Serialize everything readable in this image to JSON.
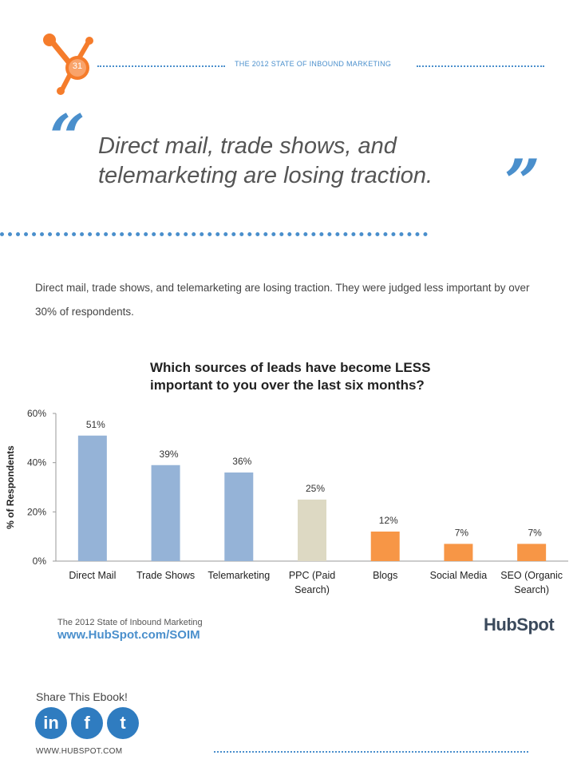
{
  "header": {
    "page_number": "31",
    "title": "THE 2012 STATE OF INBOUND MARKETING"
  },
  "quote": {
    "open_mark": "“",
    "line1": "Direct mail, trade shows, and",
    "line2": "telemarketing are losing traction.",
    "close_mark": "”"
  },
  "intro": "Direct mail, trade shows, and telemarketing are losing traction. They were judged less important by over 30% of respondents.",
  "chart_data": {
    "type": "bar",
    "title_line1": "Which sources of leads have become LESS",
    "title_line2": "important to you over the last six months?",
    "ylabel": "% of Respondents",
    "ylim": [
      0,
      60
    ],
    "yticks": [
      "0%",
      "20%",
      "40%",
      "60%"
    ],
    "categories": [
      [
        "Direct Mail"
      ],
      [
        "Trade Shows"
      ],
      [
        "Telemarketing"
      ],
      [
        "PPC (Paid",
        "Search)"
      ],
      [
        "Blogs"
      ],
      [
        "Social Media"
      ],
      [
        "SEO (Organic",
        "Search)"
      ]
    ],
    "values": [
      51,
      39,
      36,
      25,
      12,
      7,
      7
    ],
    "value_labels": [
      "51%",
      "39%",
      "36%",
      "25%",
      "12%",
      "7%",
      "7%"
    ],
    "colors": [
      "#95b3d7",
      "#95b3d7",
      "#95b3d7",
      "#ddd9c3",
      "#f79646",
      "#f79646",
      "#f79646"
    ],
    "grid": false
  },
  "footer": {
    "report_name": "The 2012 State of Inbound Marketing",
    "report_url": "www.HubSpot.com/SOIM",
    "share_label": "Share This Ebook!",
    "social": [
      "in",
      "f",
      "t"
    ],
    "site_url": "WWW.HUBSPOT.COM",
    "logo_text": "HubSpot"
  },
  "colors": {
    "accent": "#4a8fcc",
    "brand_orange": "#f57c2b"
  }
}
